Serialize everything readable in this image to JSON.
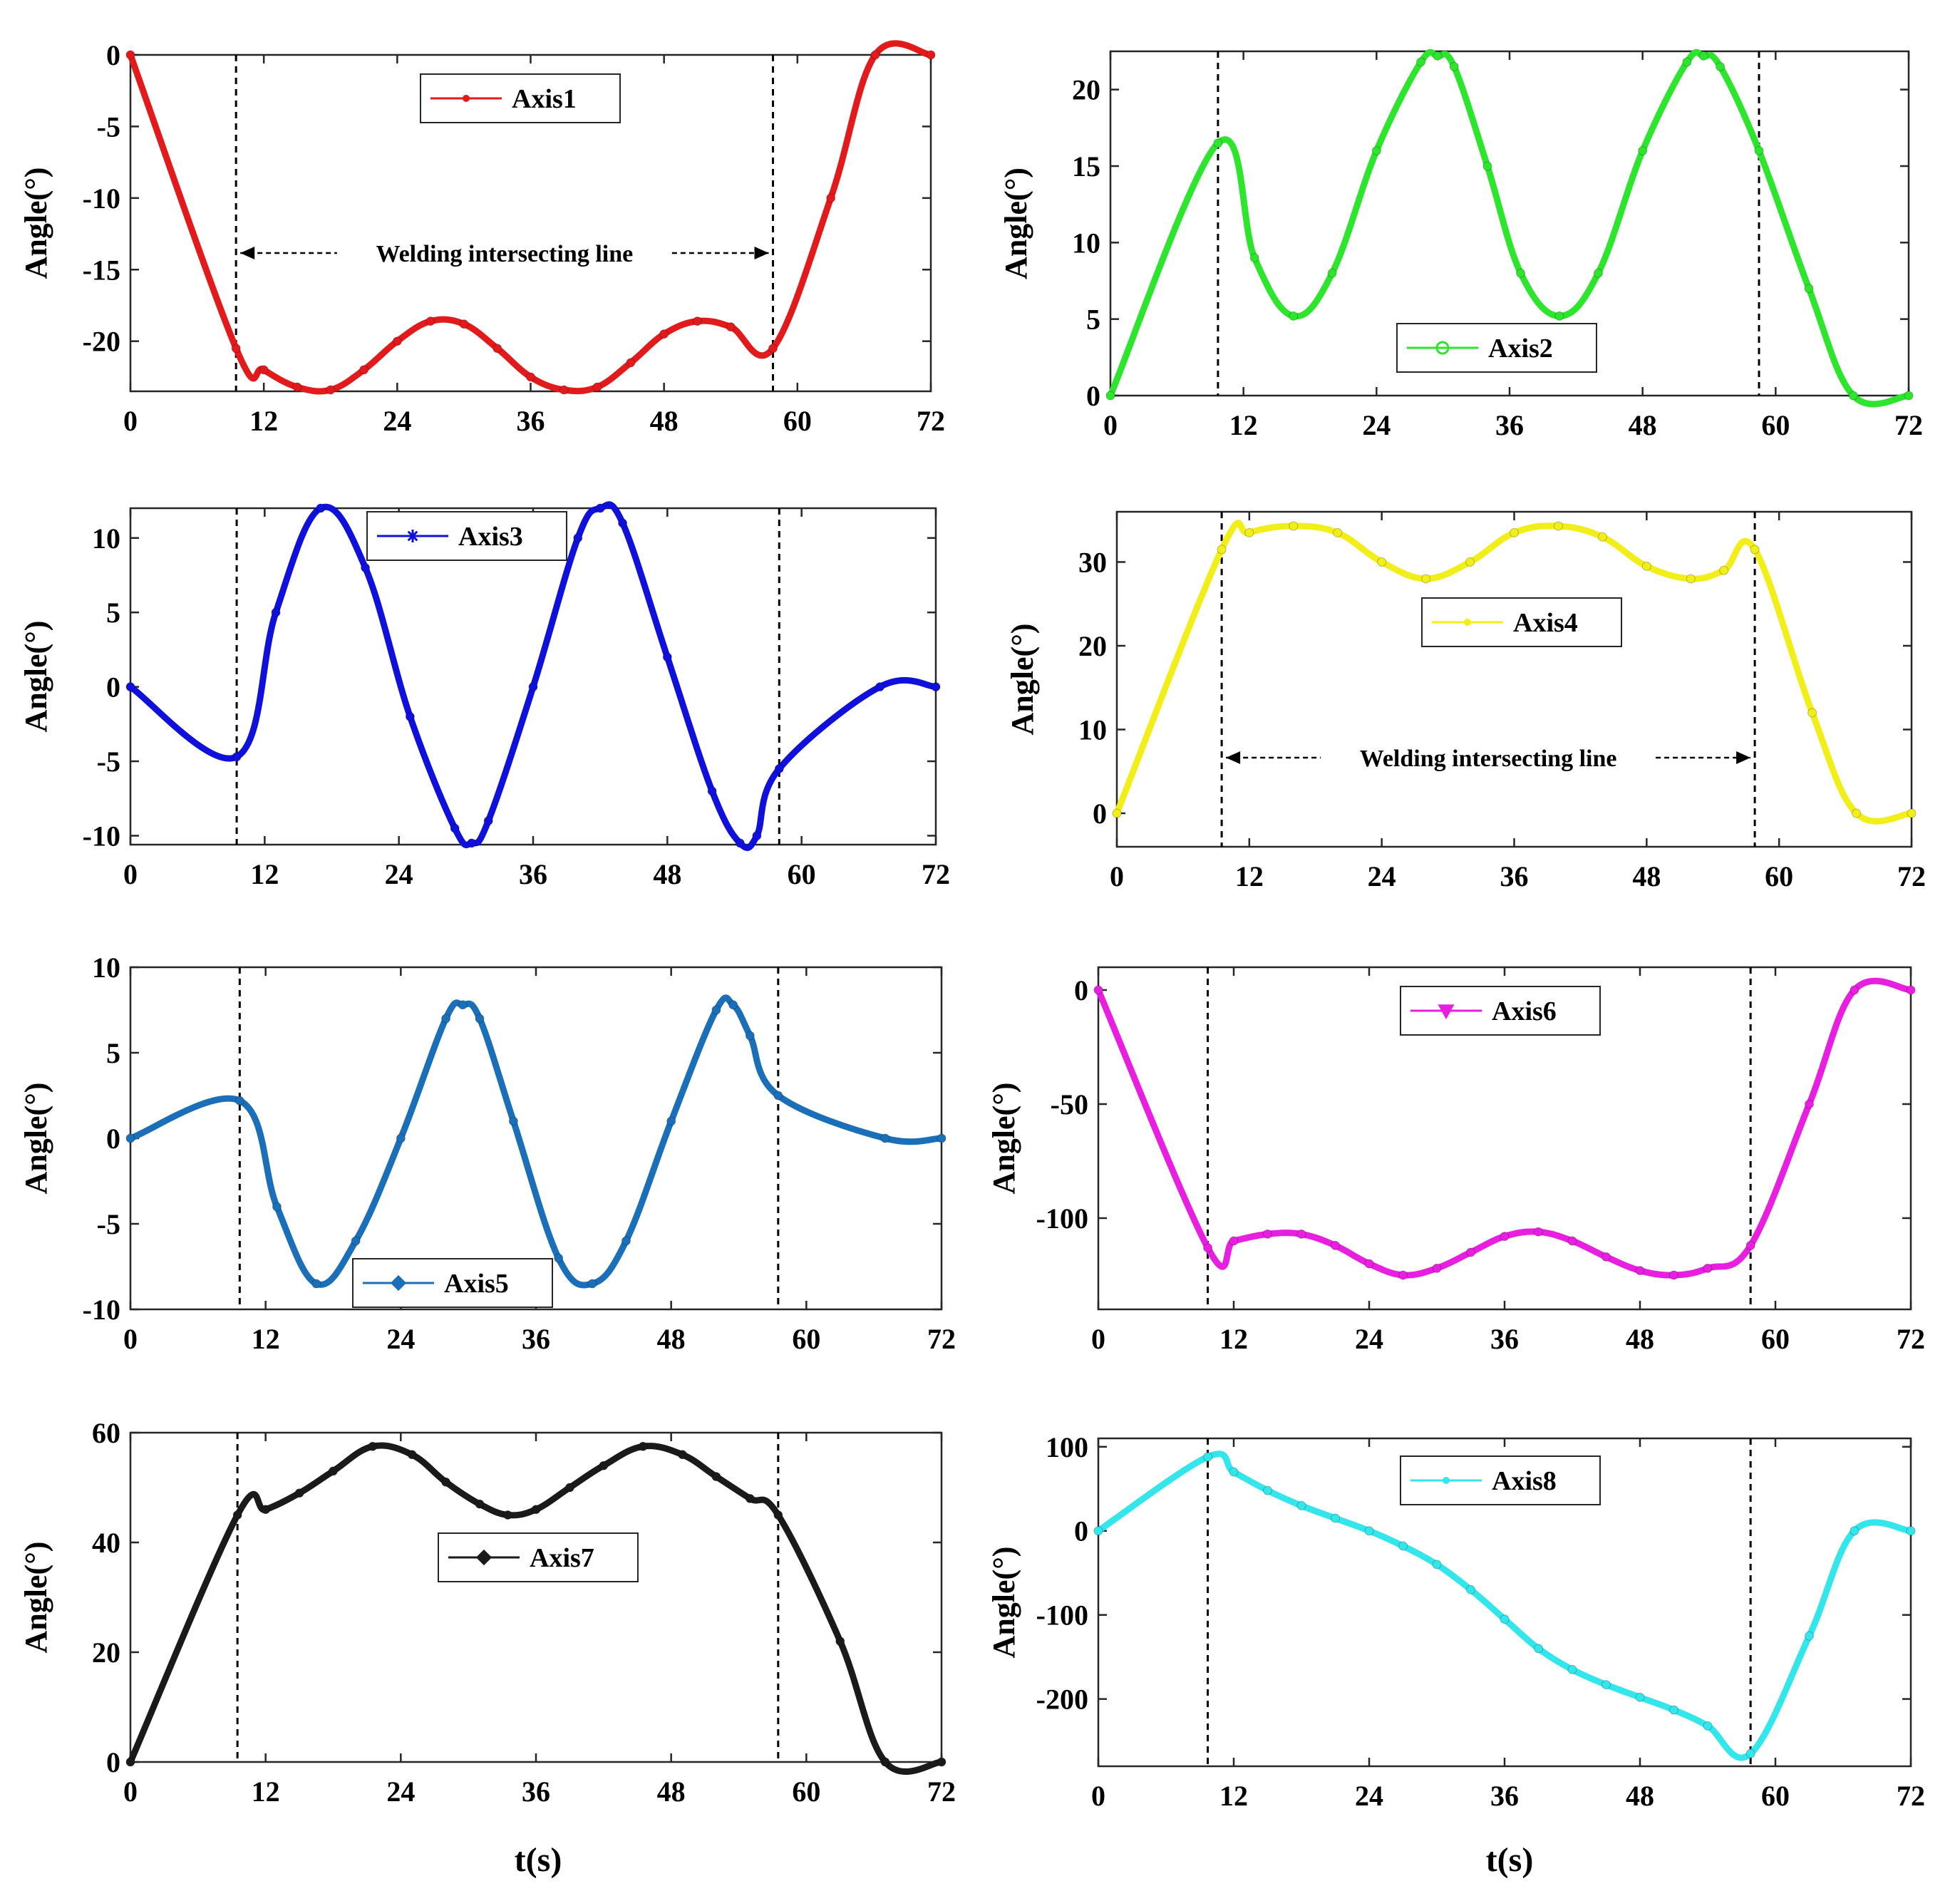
{
  "figure": {
    "x_label": "t(s)",
    "y_label": "Angle(°)"
  },
  "chart_data": [
    {
      "type": "line",
      "title": "",
      "xlabel": "",
      "ylabel": "Angle(°)",
      "xlim": [
        0,
        72
      ],
      "ylim": [
        -23.5,
        0
      ],
      "xticks": [
        0,
        12,
        24,
        36,
        48,
        60,
        72
      ],
      "xtick_labels": [
        "0",
        "12",
        "24",
        "36",
        "48",
        "60",
        "72"
      ],
      "yticks": [
        0,
        -5,
        -10,
        -15,
        -20
      ],
      "ytick_labels": [
        "0",
        "-5",
        "-10",
        "-15",
        "-20"
      ],
      "legend": "Axis1",
      "legend_position": "top-center",
      "color": "#e31a1c",
      "marker": "dot",
      "vlines": [
        9.5,
        57.8
      ],
      "annotation": "Welding intersecting line",
      "series": [
        {
          "name": "Axis1",
          "x": [
            0,
            9.5,
            12,
            15,
            18,
            21,
            24,
            27,
            30,
            33,
            36,
            39,
            42,
            45,
            48,
            51,
            54,
            57.8,
            63,
            67,
            72
          ],
          "y": [
            0,
            -20.5,
            -22,
            -23.2,
            -23.4,
            -22,
            -20,
            -18.6,
            -18.8,
            -20.5,
            -22.5,
            -23.4,
            -23.2,
            -21.5,
            -19.5,
            -18.6,
            -19,
            -20.5,
            -10,
            0,
            0
          ]
        }
      ]
    },
    {
      "type": "line",
      "title": "",
      "xlabel": "",
      "ylabel": "Angle(°)",
      "xlim": [
        0,
        72
      ],
      "ylim": [
        0,
        22.5
      ],
      "xticks": [
        0,
        12,
        24,
        36,
        48,
        60,
        72
      ],
      "xtick_labels": [
        "0",
        "12",
        "24",
        "36",
        "48",
        "60",
        "72"
      ],
      "yticks": [
        0,
        5,
        10,
        15,
        20
      ],
      "ytick_labels": [
        "0",
        "5",
        "10",
        "15",
        "20"
      ],
      "legend": "Axis2",
      "legend_position": "bottom-center",
      "color": "#2ee52e",
      "marker": "circle",
      "vlines": [
        9.7,
        58.5
      ],
      "series": [
        {
          "name": "Axis2",
          "x": [
            0,
            9.7,
            13,
            16.5,
            20,
            24,
            28,
            29.5,
            31,
            34,
            37,
            40.5,
            44,
            48,
            52,
            53.5,
            55,
            58.5,
            63,
            67,
            72
          ],
          "y": [
            0,
            16.5,
            9,
            5.2,
            8,
            16,
            21.8,
            22.2,
            21.5,
            15,
            8,
            5.2,
            8,
            16,
            21.8,
            22.2,
            21.5,
            16,
            7,
            0,
            0
          ]
        }
      ]
    },
    {
      "type": "line",
      "title": "",
      "xlabel": "",
      "ylabel": "Angle(°)",
      "xlim": [
        0,
        72
      ],
      "ylim": [
        -10.6,
        12
      ],
      "xticks": [
        0,
        12,
        24,
        36,
        48,
        60,
        72
      ],
      "xtick_labels": [
        "0",
        "12",
        "24",
        "36",
        "48",
        "60",
        "72"
      ],
      "yticks": [
        10,
        5,
        0,
        -5,
        -10
      ],
      "ytick_labels": [
        "10",
        "5",
        "0",
        "-5",
        "-10"
      ],
      "legend": "Axis3",
      "legend_position": "top-center",
      "color": "#1010dd",
      "marker": "star",
      "vlines": [
        9.5,
        58
      ],
      "series": [
        {
          "name": "Axis3",
          "x": [
            0,
            9.5,
            13,
            17,
            21,
            25,
            29,
            30.5,
            32,
            36,
            40,
            42,
            44,
            48,
            52,
            54.5,
            56,
            58,
            67,
            72
          ],
          "y": [
            0,
            -4.7,
            5,
            12,
            8,
            -2,
            -9.5,
            -10.5,
            -9,
            0,
            10,
            12,
            11,
            2,
            -7,
            -10.5,
            -10,
            -5.5,
            0,
            0
          ]
        }
      ]
    },
    {
      "type": "line",
      "title": "",
      "xlabel": "",
      "ylabel": "Angle(°)",
      "xlim": [
        0,
        72
      ],
      "ylim": [
        -4,
        36
      ],
      "xticks": [
        0,
        12,
        24,
        36,
        48,
        60,
        72
      ],
      "xtick_labels": [
        "0",
        "12",
        "24",
        "36",
        "48",
        "60",
        "72"
      ],
      "yticks": [
        0,
        10,
        20,
        30
      ],
      "ytick_labels": [
        "0",
        "10",
        "20",
        "30"
      ],
      "legend": "Axis4",
      "legend_position": "top-center",
      "color": "#f2ee1a",
      "marker": "dot",
      "vlines": [
        9.5,
        57.8
      ],
      "annotation": "Welding intersecting line",
      "series": [
        {
          "name": "Axis4",
          "x": [
            0,
            9.5,
            12,
            16,
            20,
            24,
            28,
            32,
            36,
            40,
            44,
            48,
            52,
            55,
            57.8,
            63,
            67,
            72
          ],
          "y": [
            0,
            31.5,
            33.5,
            34.3,
            33.5,
            30,
            28,
            30,
            33.5,
            34.3,
            33,
            29.5,
            28,
            29,
            31.5,
            12,
            0,
            0
          ]
        }
      ]
    },
    {
      "type": "line",
      "title": "",
      "xlabel": "",
      "ylabel": "Angle(°)",
      "xlim": [
        0,
        72
      ],
      "ylim": [
        -10,
        10
      ],
      "xticks": [
        0,
        12,
        24,
        36,
        48,
        60,
        72
      ],
      "xtick_labels": [
        "0",
        "12",
        "24",
        "36",
        "48",
        "60",
        "72"
      ],
      "yticks": [
        10,
        5,
        0,
        -5,
        -10
      ],
      "ytick_labels": [
        "10",
        "5",
        "0",
        "-5",
        "-10"
      ],
      "legend": "Axis5",
      "legend_position": "bottom-center",
      "color": "#1b6fb8",
      "marker": "diamond",
      "vlines": [
        9.7,
        57.5
      ],
      "series": [
        {
          "name": "Axis5",
          "x": [
            0,
            9.7,
            13,
            16.5,
            20,
            24,
            28,
            29.5,
            31,
            34,
            38,
            41,
            44,
            48,
            52,
            53.5,
            55,
            57.5,
            67,
            72
          ],
          "y": [
            0,
            2.2,
            -4,
            -8.5,
            -6,
            0,
            7,
            7.8,
            7,
            1,
            -7,
            -8.5,
            -6,
            1,
            7.5,
            7.8,
            6,
            2.5,
            0,
            0
          ]
        }
      ]
    },
    {
      "type": "line",
      "title": "",
      "xlabel": "",
      "ylabel": "Angle(°)",
      "xlim": [
        0,
        72
      ],
      "ylim": [
        -140,
        10
      ],
      "xticks": [
        0,
        12,
        24,
        36,
        48,
        60,
        72
      ],
      "xtick_labels": [
        "0",
        "12",
        "24",
        "36",
        "48",
        "60",
        "72"
      ],
      "yticks": [
        0,
        -50,
        -100
      ],
      "ytick_labels": [
        "0",
        "-50",
        "-100"
      ],
      "legend": "Axis6",
      "legend_position": "top-center",
      "color": "#e81ee0",
      "marker": "triangle-down",
      "vlines": [
        9.7,
        57.8
      ],
      "series": [
        {
          "name": "Axis6",
          "x": [
            0,
            9.7,
            12,
            15,
            18,
            21,
            24,
            27,
            30,
            33,
            36,
            39,
            42,
            45,
            48,
            51,
            54,
            57.8,
            63,
            67,
            72
          ],
          "y": [
            0,
            -113,
            -110,
            -107,
            -107,
            -112,
            -120,
            -125,
            -122,
            -115,
            -108,
            -106,
            -110,
            -117,
            -123,
            -125,
            -122,
            -112,
            -50,
            0,
            0
          ]
        }
      ]
    },
    {
      "type": "line",
      "title": "",
      "xlabel": "t(s)",
      "ylabel": "Angle(°)",
      "xlim": [
        0,
        72
      ],
      "ylim": [
        0,
        60
      ],
      "xticks": [
        0,
        12,
        24,
        36,
        48,
        60,
        72
      ],
      "xtick_labels": [
        "0",
        "12",
        "24",
        "36",
        "48",
        "60",
        "72"
      ],
      "yticks": [
        0,
        20,
        40,
        60
      ],
      "ytick_labels": [
        "0",
        "20",
        "40",
        "60"
      ],
      "legend": "Axis7",
      "legend_position": "center",
      "color": "#1a1a1a",
      "marker": "diamond",
      "vlines": [
        9.5,
        57.5
      ],
      "series": [
        {
          "name": "Axis7",
          "x": [
            0,
            9.5,
            12,
            15,
            18,
            21.5,
            25,
            28,
            31,
            33.5,
            36,
            39,
            42,
            45.5,
            49,
            52,
            55,
            57.5,
            63,
            67,
            72
          ],
          "y": [
            0,
            45,
            46,
            49,
            53,
            57.5,
            56,
            51,
            47,
            45,
            46,
            50,
            54,
            57.5,
            56,
            52,
            48,
            45,
            22,
            0,
            0
          ]
        }
      ]
    },
    {
      "type": "line",
      "title": "",
      "xlabel": "t(s)",
      "ylabel": "Angle(°)",
      "xlim": [
        0,
        72
      ],
      "ylim": [
        -280,
        110
      ],
      "xticks": [
        0,
        12,
        24,
        36,
        48,
        60,
        72
      ],
      "xtick_labels": [
        "0",
        "12",
        "24",
        "36",
        "48",
        "60",
        "72"
      ],
      "yticks": [
        100,
        0,
        -100,
        -200
      ],
      "ytick_labels": [
        "100",
        "0",
        "-100",
        "-200"
      ],
      "legend": "Axis8",
      "legend_position": "top-center",
      "color": "#33e6ec",
      "marker": "dot",
      "vlines": [
        9.7,
        57.8
      ],
      "series": [
        {
          "name": "Axis8",
          "x": [
            0,
            9.7,
            12,
            15,
            18,
            21,
            24,
            27,
            30,
            33,
            36,
            39,
            42,
            45,
            48,
            51,
            54,
            57.8,
            63,
            67,
            72
          ],
          "y": [
            0,
            88,
            70,
            48,
            30,
            15,
            0,
            -18,
            -40,
            -70,
            -105,
            -140,
            -165,
            -183,
            -198,
            -213,
            -232,
            -265,
            -125,
            0,
            0
          ]
        }
      ]
    }
  ]
}
